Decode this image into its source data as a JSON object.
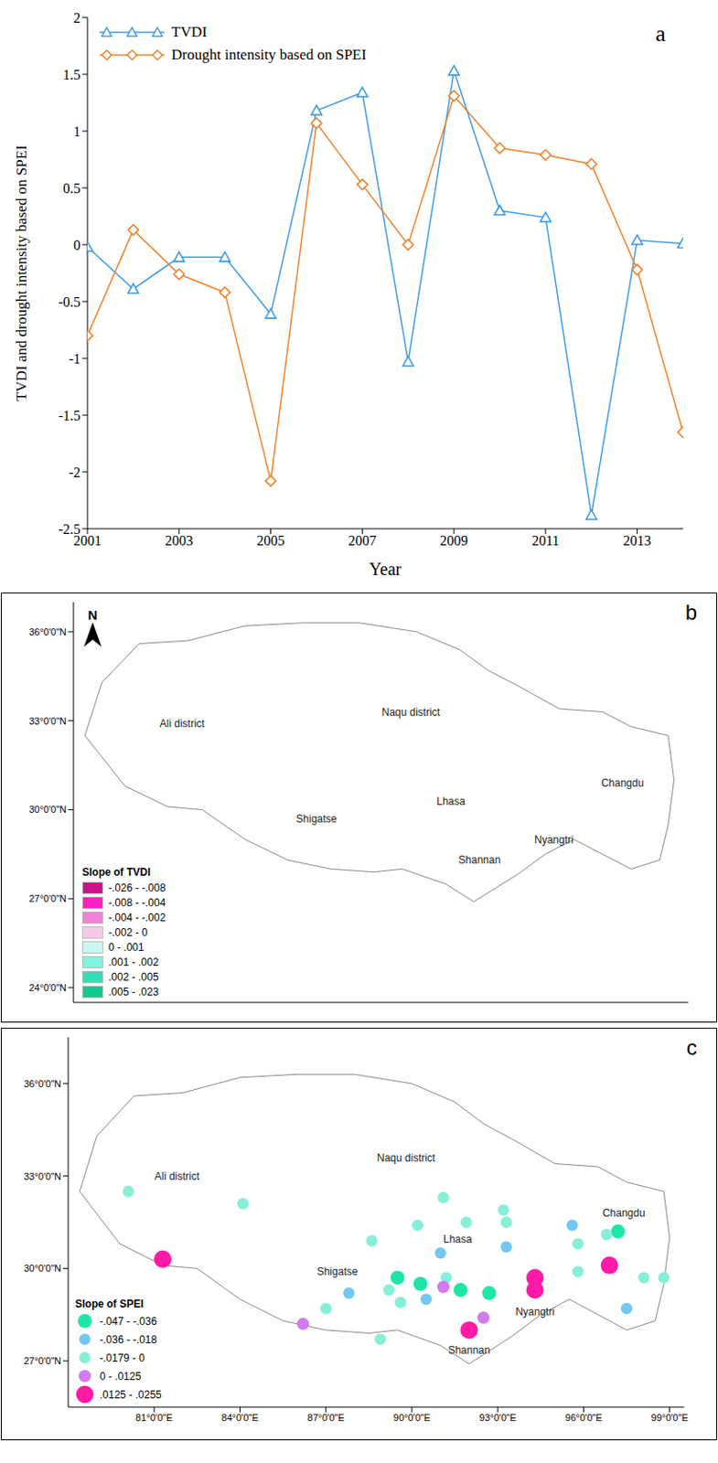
{
  "chart_data": [
    {
      "type": "line",
      "panel": "a",
      "x": [
        2001,
        2002,
        2003,
        2004,
        2005,
        2006,
        2007,
        2008,
        2009,
        2010,
        2011,
        2012,
        2013,
        2014
      ],
      "xlim": [
        2001,
        2014
      ],
      "xticks": [
        2001,
        2003,
        2005,
        2007,
        2009,
        2011,
        2013
      ],
      "ylim": [
        -2.5,
        2
      ],
      "yticks": [
        -2.5,
        -2,
        -1.5,
        -1,
        -0.5,
        0,
        0.5,
        1,
        1.5,
        2
      ],
      "x_label": "Year",
      "y_label": "TVDI and  drought intensity based on SPEI",
      "legend": "upper left",
      "series": [
        {
          "name": "TVDI",
          "color": "#3d9be6",
          "marker": "triangle",
          "values": [
            -0.02,
            -0.39,
            -0.11,
            -0.11,
            -0.61,
            1.18,
            1.34,
            -1.03,
            1.53,
            0.3,
            0.24,
            -2.38,
            0.04,
            0.01
          ]
        },
        {
          "name": "Drought intensity based on SPEI",
          "color": "#f0822a",
          "marker": "diamond",
          "values": [
            -0.8,
            0.13,
            -0.26,
            -0.42,
            -2.08,
            1.07,
            0.53,
            0.0,
            1.31,
            0.85,
            0.79,
            0.71,
            -0.22,
            -1.65
          ]
        }
      ]
    },
    {
      "type": "map",
      "panel": "b",
      "north_arrow": "N",
      "regions": [
        "Ali district",
        "Naqu district",
        "Shigatse",
        "Lhasa",
        "Nyangtri",
        "Shannan",
        "Changdu"
      ],
      "xlim": [
        78,
        99.5
      ],
      "ylim": [
        23.5,
        37
      ],
      "yticks": [
        {
          "value": 24,
          "label": "24°0'0\"N"
        },
        {
          "value": 27,
          "label": "27°0'0\"N"
        },
        {
          "value": 30,
          "label": "30°0'0\"N"
        },
        {
          "value": 33,
          "label": "33°0'0\"N"
        },
        {
          "value": 36,
          "label": "36°0'0\"N"
        }
      ],
      "tick_labels": "y",
      "legend_title": "Slope of TVDI",
      "classes": [
        {
          "label": "-.026 - -.008",
          "range": [
            -0.026,
            -0.008
          ],
          "color": "#c8148c"
        },
        {
          "label": "-.008 - -.004",
          "range": [
            -0.008,
            -0.004
          ],
          "color": "#ff20c0"
        },
        {
          "label": "-.004 - -.002",
          "range": [
            -0.004,
            -0.002
          ],
          "color": "#f080d8"
        },
        {
          "label": "-.002 - 0",
          "range": [
            -0.002,
            0
          ],
          "color": "#f8c8ec"
        },
        {
          "label": "0 - .001",
          "range": [
            0,
            0.001
          ],
          "color": "#c8f8f0"
        },
        {
          "label": ".001 - .002",
          "range": [
            0.001,
            0.002
          ],
          "color": "#7ef5dc"
        },
        {
          "label": ".002 - .005",
          "range": [
            0.002,
            0.005
          ],
          "color": "#30e0b8"
        },
        {
          "label": ".005 - .023",
          "range": [
            0.005,
            0.023
          ],
          "color": "#10c890"
        }
      ]
    },
    {
      "type": "scatter",
      "panel": "c",
      "regions": [
        "Ali district",
        "Naqu district",
        "Shigatse",
        "Lhasa",
        "Nyangtri",
        "Shannan",
        "Changdu"
      ],
      "xlim": [
        78,
        99.5
      ],
      "xticks": [
        {
          "value": 81,
          "label": "81°0'0\"E"
        },
        {
          "value": 84,
          "label": "84°0'0\"E"
        },
        {
          "value": 87,
          "label": "87°0'0\"E"
        },
        {
          "value": 90,
          "label": "90°0'0\"E"
        },
        {
          "value": 93,
          "label": "93°0'0\"E"
        },
        {
          "value": 96,
          "label": "96°0'0\"E"
        },
        {
          "value": 99,
          "label": "99°0'0\"E"
        }
      ],
      "ylim": [
        25.5,
        37.5
      ],
      "yticks": [
        {
          "value": 27,
          "label": "27°0'0\"N"
        },
        {
          "value": 30,
          "label": "30°0'0\"N"
        },
        {
          "value": 33,
          "label": "33°0'0\"N"
        },
        {
          "value": 36,
          "label": "36°0'0\"N"
        }
      ],
      "legend_title": "Slope of SPEI",
      "classes": [
        {
          "label": "-.047 - -.036",
          "range": [
            -0.047,
            -0.036
          ],
          "color": "#1ee6a8"
        },
        {
          "label": "-.036 - -.018",
          "range": [
            -0.036,
            -0.018
          ],
          "color": "#72c8f2"
        },
        {
          "label": "-.0179 - 0",
          "range": [
            -0.0179,
            0
          ],
          "color": "#86f0d6"
        },
        {
          "label": "0 - .0125",
          "range": [
            0,
            0.0125
          ],
          "color": "#d07cf0"
        },
        {
          "label": ".0125 - .0255",
          "range": [
            0.0125,
            0.0255
          ],
          "color": "#ff1aa6"
        }
      ],
      "stations": {
        "x": [
          80.1,
          81.3,
          84.1,
          86.2,
          87.0,
          87.8,
          88.6,
          89.2,
          89.5,
          88.9,
          89.6,
          90.2,
          90.3,
          90.5,
          91.1,
          91.2,
          91.0,
          91.1,
          91.7,
          91.9,
          92.0,
          92.5,
          92.7,
          93.3,
          93.2,
          93.3,
          94.3,
          94.3,
          95.6,
          95.8,
          95.8,
          96.8,
          97.2,
          96.9,
          97.5,
          98.1,
          98.8
        ],
        "y": [
          32.5,
          30.3,
          32.1,
          28.2,
          28.7,
          29.2,
          30.9,
          29.3,
          29.7,
          27.7,
          28.9,
          31.4,
          29.5,
          29.0,
          29.4,
          29.7,
          30.5,
          32.3,
          29.3,
          31.5,
          28.0,
          28.4,
          29.2,
          31.5,
          31.9,
          30.7,
          29.7,
          29.3,
          31.4,
          29.9,
          30.8,
          31.1,
          31.2,
          30.1,
          28.7,
          29.7,
          29.7
        ],
        "values": [
          -0.01,
          0.02,
          -0.008,
          0.006,
          -0.01,
          -0.025,
          -0.012,
          -0.009,
          -0.04,
          -0.005,
          -0.01,
          -0.011,
          -0.04,
          -0.025,
          0.005,
          -0.007,
          -0.03,
          -0.006,
          -0.042,
          -0.009,
          0.015,
          0.008,
          -0.04,
          -0.01,
          -0.012,
          -0.02,
          0.02,
          0.018,
          -0.03,
          -0.008,
          -0.01,
          -0.006,
          -0.045,
          0.022,
          -0.025,
          -0.009,
          -0.011
        ]
      }
    }
  ]
}
